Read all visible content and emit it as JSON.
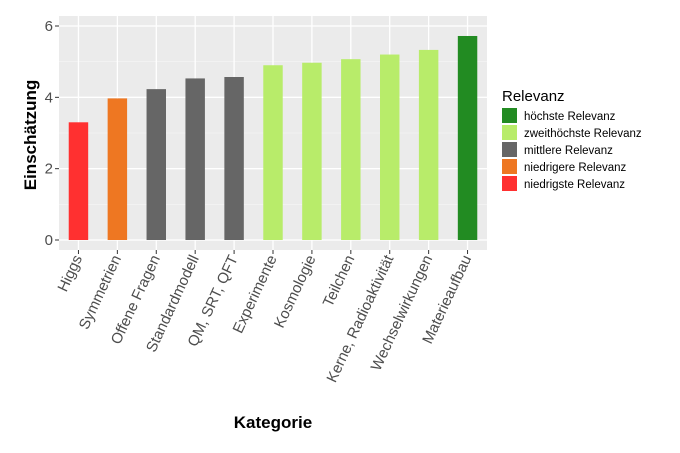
{
  "chart_data": {
    "type": "bar",
    "title": "",
    "xlabel": "Kategorie",
    "ylabel": "Einschätzung",
    "ylim": [
      0,
      6
    ],
    "yticks": [
      "0",
      "2",
      "4",
      "6"
    ],
    "grid": true,
    "legend_position": "right",
    "legend_title": "Relevanz",
    "legend": [
      {
        "label": "höchste Relevanz",
        "color": "#228b22"
      },
      {
        "label": "zweithöchste Relevanz",
        "color": "#b8ec6a"
      },
      {
        "label": "mittlere Relevanz",
        "color": "#666666"
      },
      {
        "label": "niedrigere Relevanz",
        "color": "#ee7722"
      },
      {
        "label": "niedrigste Relevanz",
        "color": "#ff3030"
      }
    ],
    "categories": [
      "Higgs",
      "Symmetrien",
      "Offene Fragen",
      "Standardmodell",
      "QM, SRT, QFT",
      "Experimente",
      "Kosmologie",
      "Teilchen",
      "Kerne, Radioaktivität",
      "Wechselwirkungen",
      "Materieaufbau"
    ],
    "values": [
      3.3,
      3.97,
      4.23,
      4.53,
      4.57,
      4.9,
      4.97,
      5.07,
      5.2,
      5.33,
      5.72
    ],
    "relevance": [
      "niedrigste Relevanz",
      "niedrigere Relevanz",
      "mittlere Relevanz",
      "mittlere Relevanz",
      "mittlere Relevanz",
      "zweithöchste Relevanz",
      "zweithöchste Relevanz",
      "zweithöchste Relevanz",
      "zweithöchste Relevanz",
      "zweithöchste Relevanz",
      "höchste Relevanz"
    ]
  }
}
